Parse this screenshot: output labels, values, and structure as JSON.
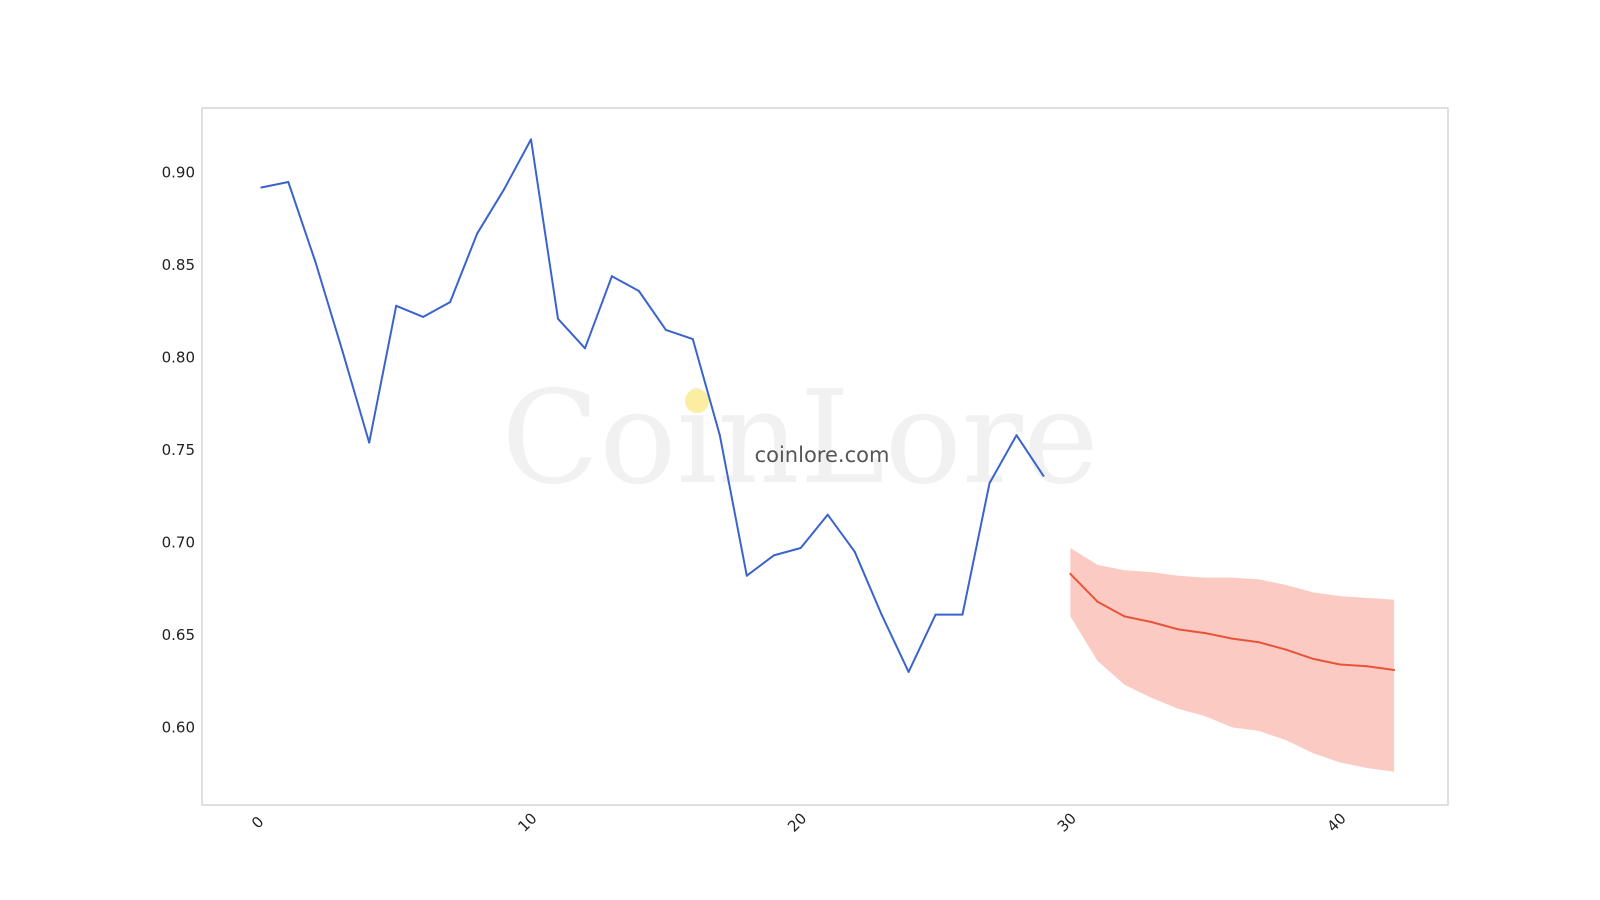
{
  "chart_data": {
    "type": "line",
    "xlim": [
      -2.2,
      44
    ],
    "ylim": [
      0.558,
      0.935
    ],
    "x_ticks": [
      0,
      10,
      20,
      30,
      40
    ],
    "y_ticks": [
      0.6,
      0.65,
      0.7,
      0.75,
      0.8,
      0.85,
      0.9
    ],
    "x_tick_labels": [
      "0",
      "10",
      "20",
      "30",
      "40"
    ],
    "y_tick_labels": [
      "0.60",
      "0.65",
      "0.70",
      "0.75",
      "0.80",
      "0.85",
      "0.90"
    ],
    "grid": false,
    "series": [
      {
        "kind": "history",
        "color": "#3a64cc",
        "x": [
          0,
          1,
          2,
          3,
          4,
          5,
          6,
          7,
          8,
          9,
          10,
          11,
          12,
          13,
          14,
          15,
          16,
          17,
          18,
          19,
          20,
          21,
          22,
          23,
          24,
          25,
          26,
          27,
          28,
          29
        ],
        "y": [
          0.892,
          0.895,
          0.852,
          0.804,
          0.754,
          0.828,
          0.822,
          0.83,
          0.867,
          0.891,
          0.918,
          0.821,
          0.805,
          0.844,
          0.836,
          0.815,
          0.81,
          0.758,
          0.682,
          0.693,
          0.697,
          0.715,
          0.695,
          0.661,
          0.63,
          0.661,
          0.661,
          0.732,
          0.758,
          0.736
        ]
      },
      {
        "kind": "forecast",
        "color": "#e8533a",
        "band_color": "#f9a89b",
        "x": [
          30,
          31,
          32,
          33,
          34,
          35,
          36,
          37,
          38,
          39,
          40,
          41,
          42
        ],
        "y": [
          0.683,
          0.668,
          0.66,
          0.657,
          0.653,
          0.651,
          0.648,
          0.646,
          0.642,
          0.637,
          0.634,
          0.633,
          0.631
        ],
        "upper": [
          0.697,
          0.688,
          0.685,
          0.684,
          0.682,
          0.681,
          0.681,
          0.68,
          0.677,
          0.673,
          0.671,
          0.67,
          0.669
        ],
        "lower": [
          0.66,
          0.636,
          0.623,
          0.616,
          0.61,
          0.606,
          0.6,
          0.598,
          0.593,
          0.586,
          0.581,
          0.578,
          0.576
        ]
      }
    ]
  },
  "watermark": {
    "brand": "CoinLore",
    "url": "coinlore.com"
  }
}
